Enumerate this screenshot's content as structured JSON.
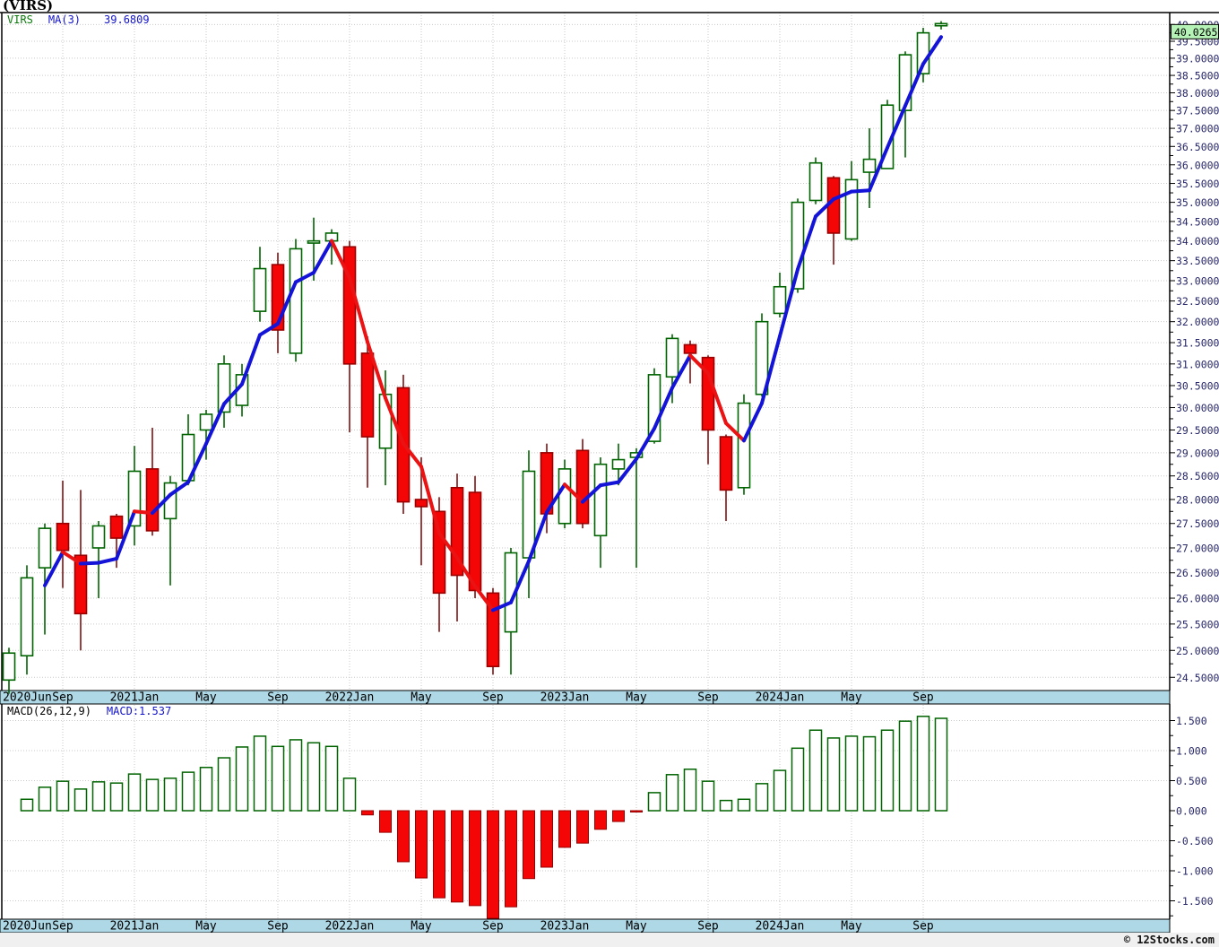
{
  "title": "(VIRS)",
  "legend": {
    "symbol": "VIRS",
    "ma_label": "MA(3)",
    "ma_value": "39.6809"
  },
  "macd_legend": {
    "label": "MACD(26,12,9)",
    "value_label": "MACD:1.537"
  },
  "price_tag": "40.0265",
  "copyright": "© 12Stocks.com",
  "colors": {
    "up": "#006400",
    "down_fill": "#f40606",
    "down_stroke": "#9b0000",
    "down_wick": "#801010",
    "ma_up": "#1414d8",
    "ma_down": "#ea1212",
    "axis_bar_bg": "#aed8e6",
    "grid": "#c9c9c9",
    "tag_bg": "#b5f2b5",
    "axis_text": "#262668",
    "xaxis_text": "#000000"
  },
  "chart_data": {
    "type": "candlestick",
    "symbol": "VIRS",
    "overlay": "MA(3) colored blue when rising, red when falling",
    "lower_panel": "MACD(26,12,9) histogram, hollow green >= 0, solid red < 0",
    "price_axis": {
      "scale": "log",
      "min": 24.5,
      "max": 40.0,
      "step": 0.5,
      "tick_labels": [
        "40.0000",
        "39.5000",
        "39.0000",
        "38.5000",
        "38.0000",
        "37.5000",
        "37.0000",
        "36.5000",
        "36.0000",
        "35.5000",
        "35.0000",
        "34.5000",
        "34.0000",
        "33.5000",
        "33.0000",
        "32.5000",
        "32.0000",
        "31.5000",
        "31.0000",
        "30.5000",
        "30.0000",
        "29.5000",
        "29.0000",
        "28.5000",
        "28.0000",
        "27.5000",
        "27.0000",
        "26.5000",
        "26.0000",
        "25.5000",
        "25.0000",
        "24.5000"
      ]
    },
    "macd_axis": {
      "min": -1.5,
      "max": 1.5,
      "step": 0.5,
      "tick_labels": [
        "1.500",
        "1.000",
        "0.500",
        "0.000",
        "-0.500",
        "-1.000",
        "-1.500"
      ]
    },
    "x_ticks": [
      {
        "month_index": 0,
        "label": "2020Jun"
      },
      {
        "month_index": 3,
        "label": "Sep"
      },
      {
        "month_index": 7,
        "label": "2021Jan"
      },
      {
        "month_index": 11,
        "label": "May"
      },
      {
        "month_index": 15,
        "label": "Sep"
      },
      {
        "month_index": 19,
        "label": "2022Jan"
      },
      {
        "month_index": 23,
        "label": "May"
      },
      {
        "month_index": 27,
        "label": "Sep"
      },
      {
        "month_index": 31,
        "label": "2023Jan"
      },
      {
        "month_index": 35,
        "label": "May"
      },
      {
        "month_index": 39,
        "label": "Sep"
      },
      {
        "month_index": 43,
        "label": "2024Jan"
      },
      {
        "month_index": 47,
        "label": "May"
      },
      {
        "month_index": 51,
        "label": "Sep"
      }
    ],
    "last_price": 40.0265,
    "last_ma": 39.6809,
    "last_macd": 1.537,
    "months": [
      {
        "d": "2020-06",
        "o": 24.45,
        "h": 25.05,
        "l": 24.2,
        "c": 24.95,
        "macd": null
      },
      {
        "d": "2020-07",
        "o": 24.9,
        "h": 26.65,
        "l": 24.55,
        "c": 26.4,
        "macd": 0.19
      },
      {
        "d": "2020-08",
        "o": 26.6,
        "h": 27.5,
        "l": 25.3,
        "c": 27.4,
        "macd": 0.39
      },
      {
        "d": "2020-09",
        "o": 27.5,
        "h": 28.4,
        "l": 26.2,
        "c": 26.95,
        "macd": 0.49
      },
      {
        "d": "2020-10",
        "o": 26.85,
        "h": 28.2,
        "l": 25.0,
        "c": 25.7,
        "macd": 0.36
      },
      {
        "d": "2020-11",
        "o": 27.0,
        "h": 27.55,
        "l": 26.0,
        "c": 27.45,
        "macd": 0.48
      },
      {
        "d": "2020-12",
        "o": 27.65,
        "h": 27.7,
        "l": 26.6,
        "c": 27.2,
        "macd": 0.46
      },
      {
        "d": "2021-01",
        "o": 27.45,
        "h": 29.15,
        "l": 27.05,
        "c": 28.6,
        "macd": 0.61
      },
      {
        "d": "2021-02",
        "o": 28.65,
        "h": 29.55,
        "l": 27.25,
        "c": 27.35,
        "macd": 0.52
      },
      {
        "d": "2021-03",
        "o": 27.6,
        "h": 28.5,
        "l": 26.25,
        "c": 28.35,
        "macd": 0.54
      },
      {
        "d": "2021-04",
        "o": 28.4,
        "h": 29.85,
        "l": 28.3,
        "c": 29.4,
        "macd": 0.64
      },
      {
        "d": "2021-05",
        "o": 29.5,
        "h": 29.95,
        "l": 28.85,
        "c": 29.85,
        "macd": 0.72
      },
      {
        "d": "2021-06",
        "o": 29.9,
        "h": 31.2,
        "l": 29.55,
        "c": 31.0,
        "macd": 0.88
      },
      {
        "d": "2021-07",
        "o": 30.05,
        "h": 31.0,
        "l": 29.8,
        "c": 30.75,
        "macd": 1.06
      },
      {
        "d": "2021-08",
        "o": 32.25,
        "h": 33.85,
        "l": 32.0,
        "c": 33.3,
        "macd": 1.24
      },
      {
        "d": "2021-09",
        "o": 33.4,
        "h": 33.7,
        "l": 31.25,
        "c": 31.8,
        "macd": 1.07
      },
      {
        "d": "2021-10",
        "o": 31.25,
        "h": 34.05,
        "l": 31.05,
        "c": 33.8,
        "macd": 1.18
      },
      {
        "d": "2021-11",
        "o": 33.95,
        "h": 34.6,
        "l": 33.0,
        "c": 34.0,
        "macd": 1.13
      },
      {
        "d": "2021-12",
        "o": 34.0,
        "h": 34.3,
        "l": 33.4,
        "c": 34.2,
        "macd": 1.07
      },
      {
        "d": "2022-01",
        "o": 33.85,
        "h": 34.0,
        "l": 29.45,
        "c": 31.0,
        "macd": 0.54
      },
      {
        "d": "2022-02",
        "o": 31.25,
        "h": 31.65,
        "l": 28.25,
        "c": 29.35,
        "macd": -0.07
      },
      {
        "d": "2022-03",
        "o": 29.1,
        "h": 30.85,
        "l": 28.3,
        "c": 30.3,
        "macd": -0.36
      },
      {
        "d": "2022-04",
        "o": 30.45,
        "h": 30.75,
        "l": 27.7,
        "c": 27.95,
        "macd": -0.85
      },
      {
        "d": "2022-05",
        "o": 28.0,
        "h": 28.9,
        "l": 26.65,
        "c": 27.85,
        "macd": -1.12
      },
      {
        "d": "2022-06",
        "o": 27.75,
        "h": 28.05,
        "l": 25.35,
        "c": 26.1,
        "macd": -1.45
      },
      {
        "d": "2022-07",
        "o": 28.25,
        "h": 28.55,
        "l": 25.55,
        "c": 26.45,
        "macd": -1.52
      },
      {
        "d": "2022-08",
        "o": 28.15,
        "h": 28.5,
        "l": 26.0,
        "c": 26.15,
        "macd": -1.58
      },
      {
        "d": "2022-09",
        "o": 26.1,
        "h": 26.2,
        "l": 24.55,
        "c": 24.7,
        "macd": -1.8
      },
      {
        "d": "2022-10",
        "o": 25.35,
        "h": 27.0,
        "l": 24.55,
        "c": 26.9,
        "macd": -1.6
      },
      {
        "d": "2022-11",
        "o": 26.8,
        "h": 29.05,
        "l": 26.0,
        "c": 28.6,
        "macd": -1.13
      },
      {
        "d": "2022-12",
        "o": 29.0,
        "h": 29.2,
        "l": 27.3,
        "c": 27.7,
        "macd": -0.94
      },
      {
        "d": "2023-01",
        "o": 27.5,
        "h": 28.85,
        "l": 27.4,
        "c": 28.65,
        "macd": -0.61
      },
      {
        "d": "2023-02",
        "o": 29.05,
        "h": 29.3,
        "l": 27.4,
        "c": 27.5,
        "macd": -0.54
      },
      {
        "d": "2023-03",
        "o": 27.25,
        "h": 28.9,
        "l": 26.6,
        "c": 28.75,
        "macd": -0.31
      },
      {
        "d": "2023-04",
        "o": 28.65,
        "h": 29.2,
        "l": 28.3,
        "c": 28.85,
        "macd": -0.18
      },
      {
        "d": "2023-05",
        "o": 28.9,
        "h": 29.1,
        "l": 26.6,
        "c": 29.0,
        "macd": -0.02
      },
      {
        "d": "2023-06",
        "o": 29.25,
        "h": 30.9,
        "l": 29.2,
        "c": 30.75,
        "macd": 0.3
      },
      {
        "d": "2023-07",
        "o": 30.7,
        "h": 31.7,
        "l": 30.1,
        "c": 31.6,
        "macd": 0.6
      },
      {
        "d": "2023-08",
        "o": 31.45,
        "h": 31.55,
        "l": 30.55,
        "c": 31.25,
        "macd": 0.69
      },
      {
        "d": "2023-09",
        "o": 31.15,
        "h": 31.2,
        "l": 28.75,
        "c": 29.5,
        "macd": 0.49
      },
      {
        "d": "2023-10",
        "o": 29.35,
        "h": 29.4,
        "l": 27.55,
        "c": 28.2,
        "macd": 0.17
      },
      {
        "d": "2023-11",
        "o": 28.25,
        "h": 30.3,
        "l": 28.1,
        "c": 30.1,
        "macd": 0.19
      },
      {
        "d": "2023-12",
        "o": 30.3,
        "h": 32.2,
        "l": 30.25,
        "c": 32.0,
        "macd": 0.45
      },
      {
        "d": "2024-01",
        "o": 32.2,
        "h": 33.2,
        "l": 32.1,
        "c": 32.85,
        "macd": 0.67
      },
      {
        "d": "2024-02",
        "o": 32.8,
        "h": 35.1,
        "l": 32.7,
        "c": 35.0,
        "macd": 1.04
      },
      {
        "d": "2024-03",
        "o": 35.05,
        "h": 36.2,
        "l": 34.95,
        "c": 36.05,
        "macd": 1.34
      },
      {
        "d": "2024-04",
        "o": 35.65,
        "h": 35.7,
        "l": 33.4,
        "c": 34.2,
        "macd": 1.21
      },
      {
        "d": "2024-05",
        "o": 34.05,
        "h": 36.1,
        "l": 34.0,
        "c": 35.6,
        "macd": 1.24
      },
      {
        "d": "2024-06",
        "o": 35.8,
        "h": 37.0,
        "l": 34.85,
        "c": 36.15,
        "macd": 1.23
      },
      {
        "d": "2024-07",
        "o": 35.9,
        "h": 37.8,
        "l": 35.9,
        "c": 37.65,
        "macd": 1.34
      },
      {
        "d": "2024-08",
        "o": 37.5,
        "h": 39.2,
        "l": 36.2,
        "c": 39.1,
        "macd": 1.49
      },
      {
        "d": "2024-09",
        "o": 38.55,
        "h": 39.9,
        "l": 38.3,
        "c": 39.75,
        "macd": 1.57
      },
      {
        "d": "2024-10",
        "o": 40.0,
        "h": 40.1,
        "l": 39.85,
        "c": 40.0265,
        "macd": 1.537
      }
    ]
  }
}
